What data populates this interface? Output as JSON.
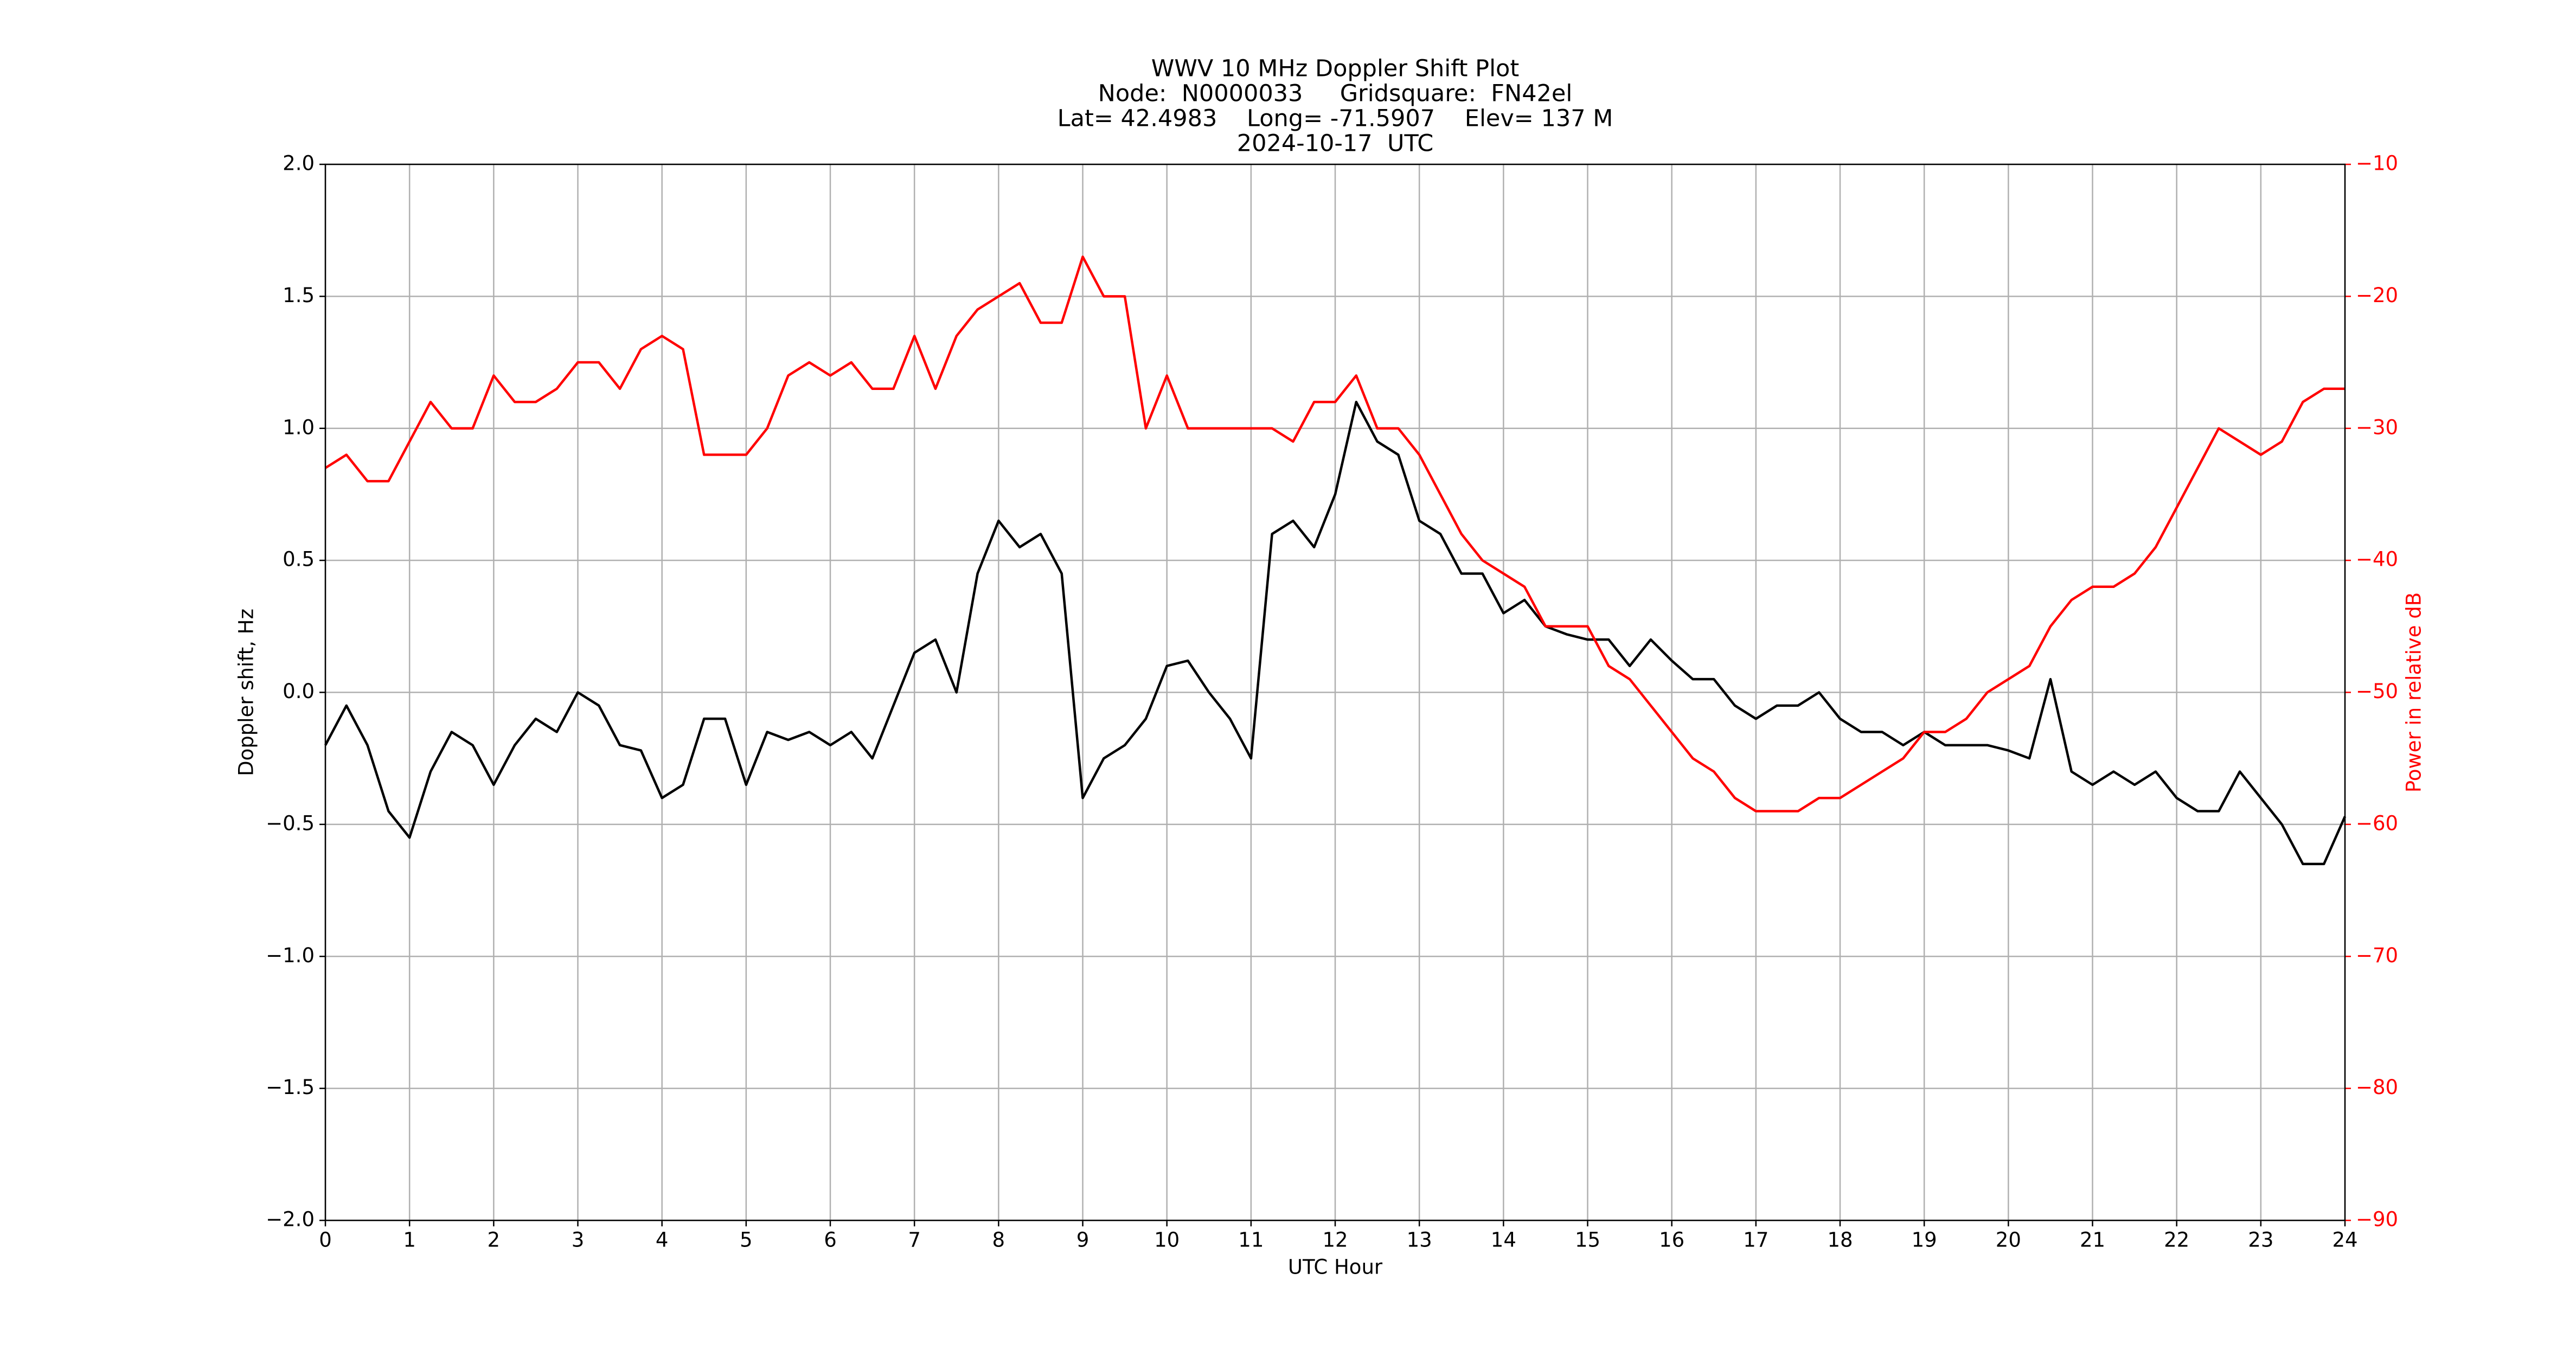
{
  "chart_data": {
    "type": "line",
    "title_lines": [
      "WWV 10 MHz Doppler Shift Plot",
      "Node:  N0000033     Gridsquare:  FN42el",
      "Lat= 42.4983    Long= -71.5907    Elev= 137 M",
      "2024-10-17  UTC"
    ],
    "xlabel": "UTC Hour",
    "ylabel": "Doppler shift, Hz",
    "y2label": "Power in relative dB",
    "y2color": "#ff0000",
    "grid": true,
    "xlim": [
      0,
      24
    ],
    "xticks": [
      0,
      1,
      2,
      3,
      4,
      5,
      6,
      7,
      8,
      9,
      10,
      11,
      12,
      13,
      14,
      15,
      16,
      17,
      18,
      19,
      20,
      21,
      22,
      23,
      24
    ],
    "ylim": [
      -2,
      2
    ],
    "yticks": [
      {
        "value": -2,
        "label": "−2.0"
      },
      {
        "value": -1.5,
        "label": "−1.5"
      },
      {
        "value": -1,
        "label": "−1.0"
      },
      {
        "value": -0.5,
        "label": "−0.5"
      },
      {
        "value": 0,
        "label": "0.0"
      },
      {
        "value": 0.5,
        "label": "0.5"
      },
      {
        "value": 1,
        "label": "1.0"
      },
      {
        "value": 1.5,
        "label": "1.5"
      },
      {
        "value": 2,
        "label": "2.0"
      }
    ],
    "y2lim": [
      -90,
      -10
    ],
    "y2ticks": [
      {
        "value": -90,
        "label": "−90"
      },
      {
        "value": -80,
        "label": "−80"
      },
      {
        "value": -70,
        "label": "−70"
      },
      {
        "value": -60,
        "label": "−60"
      },
      {
        "value": -50,
        "label": "−50"
      },
      {
        "value": -40,
        "label": "−40"
      },
      {
        "value": -30,
        "label": "−30"
      },
      {
        "value": -20,
        "label": "−20"
      },
      {
        "value": -10,
        "label": "−10"
      }
    ],
    "x": [
      0,
      0.25,
      0.5,
      0.75,
      1,
      1.25,
      1.5,
      1.75,
      2,
      2.25,
      2.5,
      2.75,
      3,
      3.25,
      3.5,
      3.75,
      4,
      4.25,
      4.5,
      4.75,
      5,
      5.25,
      5.5,
      5.75,
      6,
      6.25,
      6.5,
      6.75,
      7,
      7.25,
      7.5,
      7.75,
      8,
      8.25,
      8.5,
      8.75,
      9,
      9.25,
      9.5,
      9.75,
      10,
      10.25,
      10.5,
      10.75,
      11,
      11.25,
      11.5,
      11.75,
      12,
      12.25,
      12.5,
      12.75,
      13,
      13.25,
      13.5,
      13.75,
      14,
      14.25,
      14.5,
      14.75,
      15,
      15.25,
      15.5,
      15.75,
      16,
      16.25,
      16.5,
      16.75,
      17,
      17.25,
      17.5,
      17.75,
      18,
      18.25,
      18.5,
      18.75,
      19,
      19.25,
      19.5,
      19.75,
      20,
      20.25,
      20.5,
      20.75,
      21,
      21.25,
      21.5,
      21.75,
      22,
      22.25,
      22.5,
      22.75,
      23,
      23.25,
      23.5,
      23.75,
      24
    ],
    "series": [
      {
        "color": "#000000",
        "values": [
          -0.2,
          -0.05,
          -0.2,
          -0.45,
          -0.55,
          -0.3,
          -0.15,
          -0.2,
          -0.35,
          -0.2,
          -0.1,
          -0.15,
          0.0,
          -0.05,
          -0.2,
          -0.22,
          -0.4,
          -0.35,
          -0.1,
          -0.1,
          -0.35,
          -0.15,
          -0.18,
          -0.15,
          -0.2,
          -0.15,
          -0.25,
          -0.05,
          0.15,
          0.2,
          0.0,
          0.45,
          0.65,
          0.55,
          0.6,
          0.45,
          -0.4,
          -0.25,
          -0.2,
          -0.1,
          0.1,
          0.12,
          0.0,
          -0.1,
          -0.25,
          0.6,
          0.65,
          0.55,
          0.75,
          1.1,
          0.95,
          0.9,
          0.65,
          0.6,
          0.45,
          0.45,
          0.3,
          0.35,
          0.25,
          0.22,
          0.2,
          0.2,
          0.1,
          0.2,
          0.12,
          0.05,
          0.05,
          -0.05,
          -0.1,
          -0.05,
          -0.05,
          0.0,
          -0.1,
          -0.15,
          -0.15,
          -0.2,
          -0.15,
          -0.2,
          -0.2,
          -0.2,
          -0.22,
          -0.25,
          0.05,
          -0.3,
          -0.35,
          -0.3,
          -0.35,
          -0.3,
          -0.4,
          -0.45,
          -0.45,
          -0.3,
          -0.4,
          -0.5,
          -0.65,
          -0.65,
          -0.47
        ]
      },
      {
        "color": "#ff0000",
        "axis": "y2",
        "values": [
          -33,
          -32,
          -34,
          -34,
          -31,
          -28,
          -30,
          -30,
          -26,
          -28,
          -28,
          -27,
          -25,
          -25,
          -27,
          -24,
          -23,
          -24,
          -32,
          -32,
          -32,
          -30,
          -26,
          -25,
          -26,
          -25,
          -27,
          -27,
          -23,
          -27,
          -23,
          -21,
          -20,
          -19,
          -22,
          -22,
          -17,
          -20,
          -20,
          -30,
          -26,
          -30,
          -30,
          -30,
          -30,
          -30,
          -31,
          -28,
          -28,
          -26,
          -30,
          -30,
          -32,
          -35,
          -38,
          -40,
          -41,
          -42,
          -45,
          -45,
          -45,
          -48,
          -49,
          -51,
          -53,
          -55,
          -56,
          -58,
          -59,
          -59,
          -59,
          -58,
          -58,
          -57,
          -56,
          -55,
          -53,
          -53,
          -52,
          -50,
          -49,
          -48,
          -45,
          -43,
          -42,
          -42,
          -41,
          -39,
          -36,
          -33,
          -30,
          -31,
          -32,
          -31,
          -28,
          -27,
          -27
        ]
      }
    ]
  }
}
